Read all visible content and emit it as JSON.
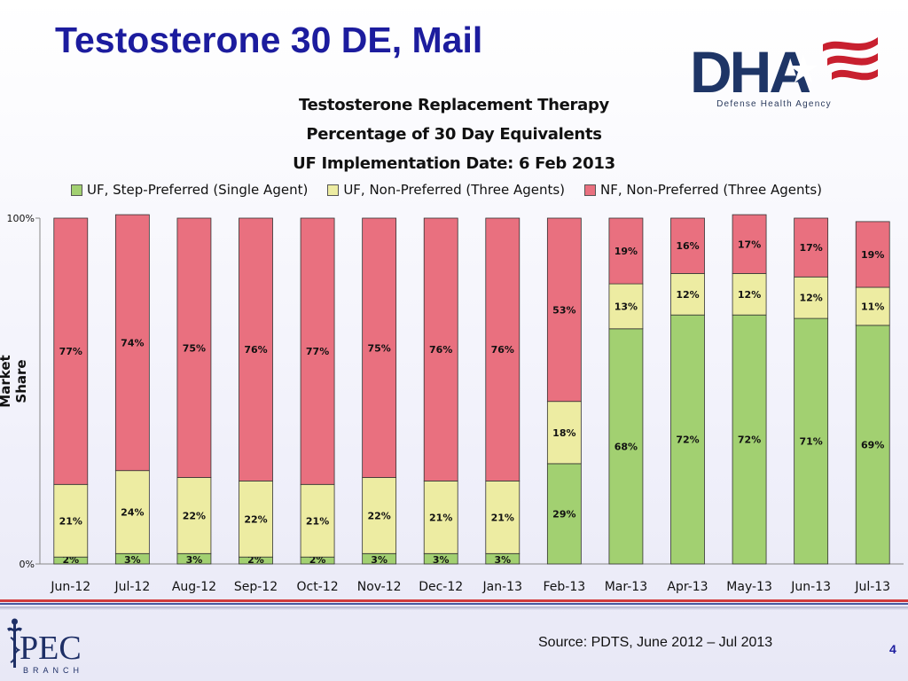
{
  "slide": {
    "title": "Testosterone 30 DE, Mail",
    "source": "Source: PDTS, June 2012 – Jul 2013",
    "page_number": "4"
  },
  "logos": {
    "dha_text": "DHA",
    "dha_tagline": "Defense Health Agency",
    "pec_text": "PEC",
    "pec_subtext": "BRANCH"
  },
  "colors": {
    "uf_step": "#a2d071",
    "uf_non": "#edeca2",
    "nf_non": "#e9707f",
    "title": "#1c1c9e",
    "axis": "#888888"
  },
  "chart_data": {
    "type": "bar",
    "stacked": true,
    "title_lines": [
      "Testosterone Replacement Therapy",
      "Percentage of 30 Day Equivalents",
      "UF Implementation Date: 6 Feb 2013"
    ],
    "ylabel": "Market Share",
    "xlabel": "",
    "ylim": [
      0,
      100
    ],
    "y_ticks": [
      "0%",
      "100%"
    ],
    "legend_position": "top",
    "grid": false,
    "categories": [
      "Jun-12",
      "Jul-12",
      "Aug-12",
      "Sep-12",
      "Oct-12",
      "Nov-12",
      "Dec-12",
      "Jan-13",
      "Feb-13",
      "Mar-13",
      "Apr-13",
      "May-13",
      "Jun-13",
      "Jul-13"
    ],
    "series": [
      {
        "name": "UF, Step-Preferred (Single Agent)",
        "values": [
          2,
          3,
          3,
          2,
          2,
          3,
          3,
          3,
          29,
          68,
          72,
          72,
          71,
          69
        ],
        "labels": [
          "2%",
          "3%",
          "3%",
          "2%",
          "2%",
          "3%",
          "3%",
          "3%",
          "29%",
          "68%",
          "72%",
          "72%",
          "71%",
          "69%"
        ]
      },
      {
        "name": "UF, Non-Preferred (Three Agents)",
        "values": [
          21,
          24,
          22,
          22,
          21,
          22,
          21,
          21,
          18,
          13,
          12,
          12,
          12,
          11
        ],
        "labels": [
          "21%",
          "24%",
          "22%",
          "22%",
          "21%",
          "22%",
          "21%",
          "21%",
          "18%",
          "13%",
          "12%",
          "12%",
          "12%",
          "11%"
        ]
      },
      {
        "name": "NF, Non-Preferred (Three Agents)",
        "values": [
          77,
          74,
          75,
          76,
          77,
          75,
          76,
          76,
          53,
          19,
          16,
          17,
          17,
          19
        ],
        "labels": [
          "77%",
          "74%",
          "75%",
          "76%",
          "77%",
          "75%",
          "76%",
          "76%",
          "53%",
          "19%",
          "16%",
          "17%",
          "17%",
          "19%"
        ]
      }
    ]
  }
}
